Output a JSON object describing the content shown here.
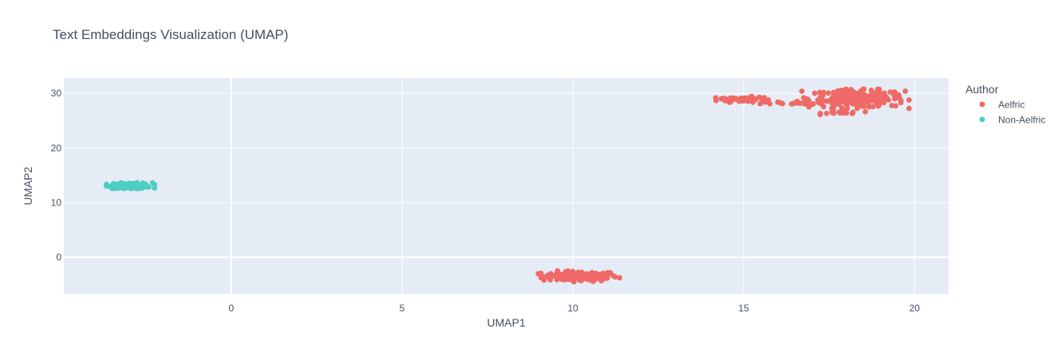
{
  "chart_data": {
    "type": "scatter",
    "title": "Text Embeddings Visualization (UMAP)",
    "xlabel": "UMAP1",
    "ylabel": "UMAP2",
    "xlim": [
      -4.9,
      21.0
    ],
    "ylim": [
      -6.7,
      32.8
    ],
    "xticks": [
      0,
      5,
      10,
      15,
      20
    ],
    "yticks": [
      0,
      10,
      20,
      30
    ],
    "grid": true,
    "legend": {
      "title": "Author",
      "placement": "right"
    },
    "colors": {
      "Aelfric": "#ef6a66",
      "Non-Aelfric": "#4ecdc4",
      "plot_bg": "#e5ecf6",
      "grid": "#ffffff"
    },
    "series": [
      {
        "name": "Aelfric",
        "color": "#ef6a66",
        "clusters": [
          {
            "cx": 10.2,
            "cy": -3.5,
            "sx": 0.55,
            "sy": 0.45,
            "n": 140
          },
          {
            "cx": 14.95,
            "cy": 28.9,
            "sx": 0.35,
            "sy": 0.25,
            "n": 60
          },
          {
            "cx": 16.6,
            "cy": 28.2,
            "sx": 0.55,
            "sy": 0.15,
            "n": 20
          },
          {
            "cx": 18.3,
            "cy": 29.0,
            "sx": 0.7,
            "sy": 0.8,
            "n": 220
          },
          {
            "cx": 17.9,
            "cy": 26.5,
            "sx": 0.3,
            "sy": 0.18,
            "n": 20
          }
        ],
        "points": [
          {
            "x": 9.5,
            "y": -3.2
          },
          {
            "x": 9.55,
            "y": -2.5
          },
          {
            "x": 10.9,
            "y": -3.1
          },
          {
            "x": 15.6,
            "y": 29.2
          },
          {
            "x": 16.0,
            "y": 28.4
          },
          {
            "x": 16.7,
            "y": 30.4
          },
          {
            "x": 19.6,
            "y": 28.3
          },
          {
            "x": 14.4,
            "y": 29.1
          }
        ]
      },
      {
        "name": "Non-Aelfric",
        "color": "#4ecdc4",
        "clusters": [
          {
            "cx": -2.95,
            "cy": 13.1,
            "sx": 0.32,
            "sy": 0.25,
            "n": 120
          }
        ],
        "points": [
          {
            "x": -3.4,
            "y": 13.0
          },
          {
            "x": -2.5,
            "y": 13.2
          }
        ]
      }
    ]
  }
}
